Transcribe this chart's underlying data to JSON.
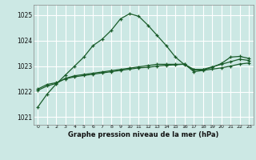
{
  "title": "Graphe pression niveau de la mer (hPa)",
  "background_color": "#cce8e4",
  "plot_bg_color": "#cce8e4",
  "line_color": "#1a5c2a",
  "grid_color": "#aad4cc",
  "ylim": [
    1020.7,
    1025.4
  ],
  "xlim": [
    -0.5,
    23.5
  ],
  "yticks": [
    1021,
    1022,
    1023,
    1024,
    1025
  ],
  "xticks": [
    0,
    1,
    2,
    3,
    4,
    5,
    6,
    7,
    8,
    9,
    10,
    11,
    12,
    13,
    14,
    15,
    16,
    17,
    18,
    19,
    20,
    21,
    22,
    23
  ],
  "line1": [
    1021.4,
    1021.9,
    1022.3,
    1022.65,
    1023.0,
    1023.35,
    1023.8,
    1024.05,
    1024.4,
    1024.85,
    1025.05,
    1024.95,
    1024.6,
    1024.2,
    1023.8,
    1023.35,
    1023.05,
    1022.85,
    1022.85,
    1022.95,
    1023.1,
    1023.35,
    1023.38,
    1023.3
  ],
  "line2": [
    1022.1,
    1022.28,
    1022.35,
    1022.5,
    1022.58,
    1022.63,
    1022.68,
    1022.73,
    1022.78,
    1022.83,
    1022.88,
    1022.93,
    1022.95,
    1023.0,
    1023.03,
    1023.05,
    1023.08,
    1022.78,
    1022.83,
    1022.88,
    1022.93,
    1023.0,
    1023.08,
    1023.12
  ],
  "line3": [
    1022.05,
    1022.22,
    1022.32,
    1022.52,
    1022.62,
    1022.67,
    1022.72,
    1022.77,
    1022.82,
    1022.87,
    1022.92,
    1022.97,
    1023.02,
    1023.07,
    1023.07,
    1023.07,
    1023.07,
    1022.87,
    1022.87,
    1022.97,
    1023.07,
    1023.17,
    1023.27,
    1023.22
  ]
}
